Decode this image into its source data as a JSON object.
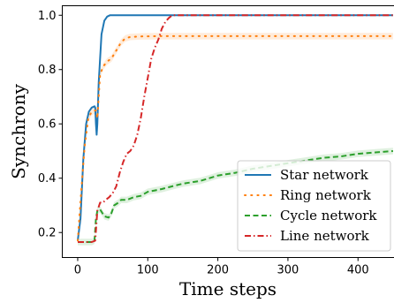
{
  "chart_data": {
    "type": "line",
    "xlabel": "Time steps",
    "ylabel": "Synchrony",
    "xlim": [
      -22,
      452
    ],
    "ylim": [
      0.108,
      1.035
    ],
    "xticks": [
      0,
      100,
      200,
      300,
      400
    ],
    "yticks": [
      0.2,
      0.4,
      0.6,
      0.8,
      1.0
    ],
    "xtick_labels": [
      "0",
      "100",
      "200",
      "300",
      "400"
    ],
    "ytick_labels": [
      "0.2",
      "0.4",
      "0.6",
      "0.8",
      "1.0"
    ],
    "grid": false,
    "legend_position": "lower-right",
    "series": [
      {
        "name": "Star network",
        "color": "#1f77b4",
        "style": "solid",
        "points": [
          [
            0,
            0.17
          ],
          [
            4,
            0.25
          ],
          [
            8,
            0.47
          ],
          [
            12,
            0.6
          ],
          [
            16,
            0.645
          ],
          [
            20,
            0.66
          ],
          [
            24,
            0.665
          ],
          [
            25,
            0.66
          ],
          [
            26,
            0.6
          ],
          [
            27,
            0.56
          ],
          [
            28,
            0.6
          ],
          [
            30,
            0.75
          ],
          [
            34,
            0.93
          ],
          [
            38,
            0.98
          ],
          [
            42,
            0.995
          ],
          [
            46,
            1.0
          ],
          [
            60,
            1.0
          ],
          [
            100,
            1.0
          ],
          [
            200,
            1.0
          ],
          [
            300,
            1.0
          ],
          [
            400,
            1.0
          ],
          [
            450,
            1.0
          ]
        ]
      },
      {
        "name": "Ring network",
        "color": "#ff7f0e",
        "style": "dotted",
        "band": 0.012,
        "points": [
          [
            0,
            0.17
          ],
          [
            5,
            0.35
          ],
          [
            10,
            0.52
          ],
          [
            15,
            0.62
          ],
          [
            20,
            0.645
          ],
          [
            26,
            0.65
          ],
          [
            28,
            0.62
          ],
          [
            32,
            0.78
          ],
          [
            36,
            0.81
          ],
          [
            42,
            0.83
          ],
          [
            48,
            0.84
          ],
          [
            55,
            0.87
          ],
          [
            62,
            0.9
          ],
          [
            68,
            0.915
          ],
          [
            75,
            0.92
          ],
          [
            90,
            0.922
          ],
          [
            120,
            0.923
          ],
          [
            200,
            0.923
          ],
          [
            300,
            0.923
          ],
          [
            400,
            0.923
          ],
          [
            450,
            0.923
          ]
        ]
      },
      {
        "name": "Cycle network",
        "color": "#2ca02c",
        "style": "dashed",
        "band": 0.012,
        "points": [
          [
            0,
            0.165
          ],
          [
            10,
            0.165
          ],
          [
            20,
            0.165
          ],
          [
            24,
            0.17
          ],
          [
            26,
            0.25
          ],
          [
            28,
            0.28
          ],
          [
            32,
            0.285
          ],
          [
            38,
            0.26
          ],
          [
            44,
            0.255
          ],
          [
            48,
            0.27
          ],
          [
            52,
            0.3
          ],
          [
            58,
            0.31
          ],
          [
            62,
            0.32
          ],
          [
            70,
            0.32
          ],
          [
            80,
            0.33
          ],
          [
            90,
            0.335
          ],
          [
            100,
            0.35
          ],
          [
            110,
            0.355
          ],
          [
            120,
            0.36
          ],
          [
            135,
            0.37
          ],
          [
            150,
            0.38
          ],
          [
            175,
            0.39
          ],
          [
            200,
            0.41
          ],
          [
            225,
            0.42
          ],
          [
            250,
            0.435
          ],
          [
            275,
            0.445
          ],
          [
            300,
            0.455
          ],
          [
            325,
            0.465
          ],
          [
            350,
            0.475
          ],
          [
            375,
            0.48
          ],
          [
            400,
            0.49
          ],
          [
            425,
            0.495
          ],
          [
            450,
            0.5
          ]
        ]
      },
      {
        "name": "Line network",
        "color": "#d62728",
        "style": "dashdot",
        "points": [
          [
            0,
            0.165
          ],
          [
            10,
            0.165
          ],
          [
            20,
            0.165
          ],
          [
            25,
            0.17
          ],
          [
            28,
            0.28
          ],
          [
            32,
            0.31
          ],
          [
            36,
            0.31
          ],
          [
            40,
            0.32
          ],
          [
            45,
            0.33
          ],
          [
            50,
            0.345
          ],
          [
            55,
            0.37
          ],
          [
            60,
            0.42
          ],
          [
            65,
            0.46
          ],
          [
            70,
            0.49
          ],
          [
            75,
            0.5
          ],
          [
            80,
            0.52
          ],
          [
            85,
            0.56
          ],
          [
            90,
            0.62
          ],
          [
            95,
            0.7
          ],
          [
            100,
            0.77
          ],
          [
            105,
            0.84
          ],
          [
            110,
            0.88
          ],
          [
            115,
            0.91
          ],
          [
            120,
            0.95
          ],
          [
            125,
            0.975
          ],
          [
            130,
            0.99
          ],
          [
            135,
            1.0
          ],
          [
            140,
            1.0
          ],
          [
            200,
            1.0
          ],
          [
            300,
            1.0
          ],
          [
            400,
            1.0
          ],
          [
            450,
            1.0
          ]
        ]
      }
    ]
  }
}
